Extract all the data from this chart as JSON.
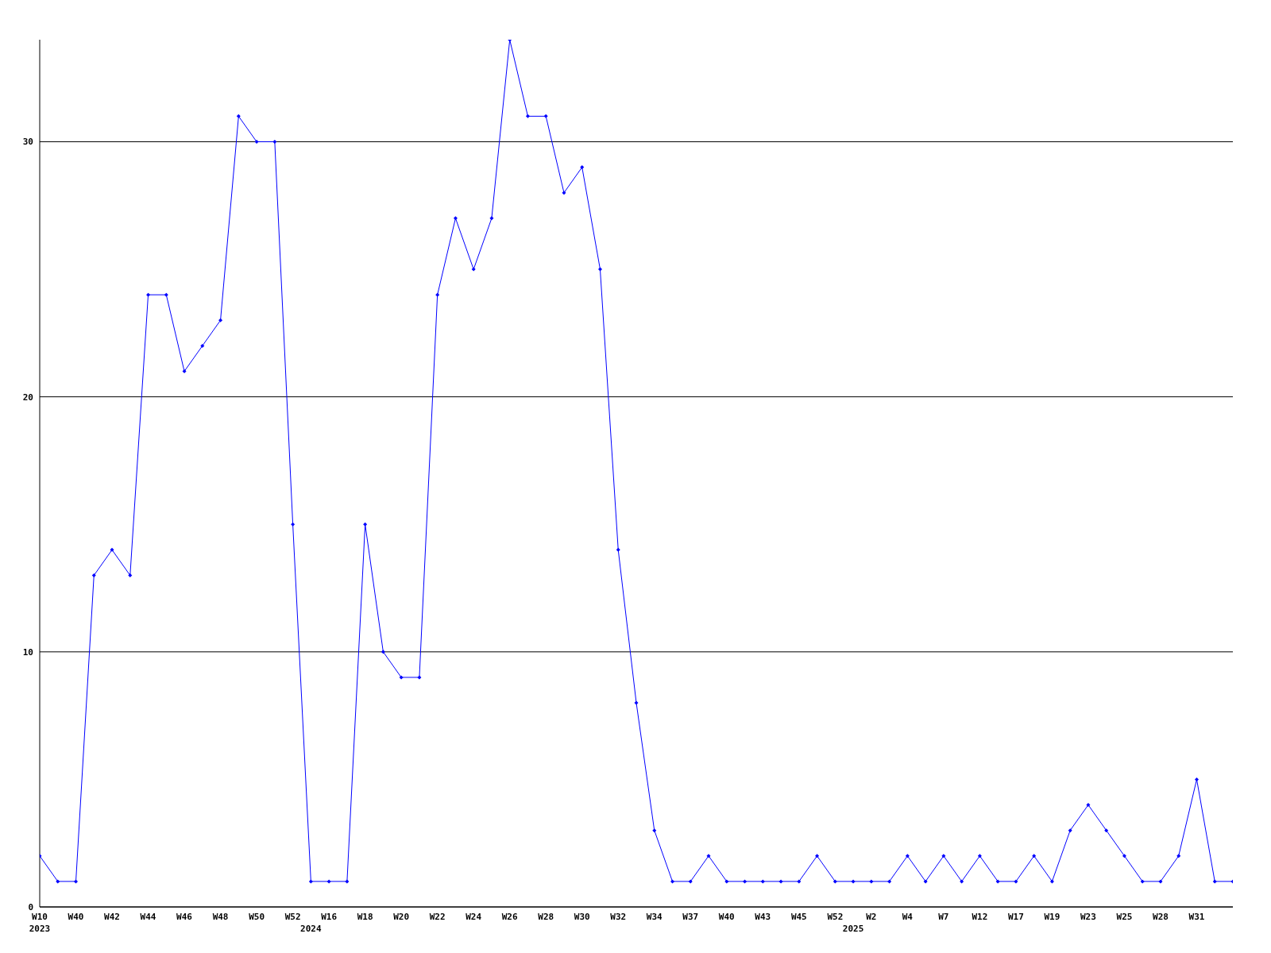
{
  "chart_data": {
    "type": "line",
    "categories": [
      "W10\n2023",
      null,
      "W40",
      null,
      "W42",
      null,
      "W44",
      null,
      "W46",
      null,
      "W48",
      null,
      "W50",
      null,
      "W52",
      "\n2024",
      "W16",
      null,
      "W18",
      null,
      "W20",
      null,
      "W22",
      null,
      "W24",
      null,
      "W26",
      null,
      "W28",
      null,
      "W30",
      null,
      "W32",
      null,
      "W34",
      null,
      "W37",
      null,
      "W40",
      null,
      "W43",
      null,
      "W45",
      null,
      "W52",
      "\n2025",
      "W2",
      null,
      "W4",
      null,
      "W7",
      null,
      "W12",
      null,
      "W17",
      null,
      "W19",
      null,
      "W23",
      null,
      "W25",
      null,
      "W28",
      null,
      "W31",
      null,
      null
    ],
    "series": [
      {
        "color": "#0000ff",
        "values": [
          2,
          1,
          1,
          13,
          14,
          13,
          24,
          24,
          21,
          22,
          23,
          31,
          30,
          30,
          15,
          1,
          1,
          1,
          15,
          10,
          9,
          9,
          24,
          27,
          25,
          27,
          34,
          31,
          31,
          28,
          29,
          25,
          14,
          8,
          3,
          1,
          1,
          2,
          1,
          1,
          1,
          1,
          1,
          2,
          1,
          1,
          1,
          1,
          2,
          1,
          2,
          1,
          2,
          1,
          1,
          2,
          1,
          3,
          4,
          3,
          2,
          1,
          1,
          2,
          5,
          1,
          1
        ]
      }
    ],
    "ylim": [
      0,
      34
    ],
    "yticks": [
      0,
      10,
      20,
      30
    ],
    "grid": "y",
    "marker": "diamond",
    "line_style": "solid"
  }
}
